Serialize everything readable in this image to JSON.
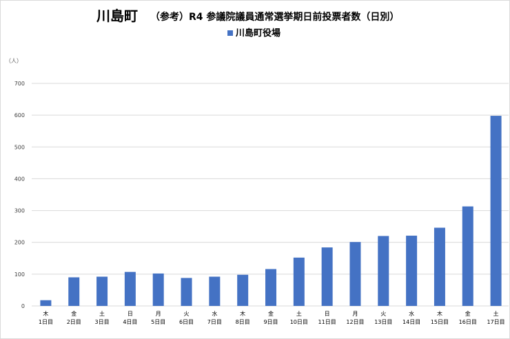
{
  "chart_data": {
    "type": "bar",
    "title_main": "川島町",
    "title_sub": "（参考）R4 参議院議員通常選挙期日前投票者数（日別）",
    "unit_label": "（人）",
    "ylim": [
      0,
      700
    ],
    "yticks": [
      0,
      100,
      200,
      300,
      400,
      500,
      600,
      700
    ],
    "grid": true,
    "legend_position": "top-center",
    "colors": {
      "bar": "#4472c4",
      "grid": "#d9d9d9",
      "text": "#000000"
    },
    "categories": [
      {
        "weekday": "木",
        "day": "1日目"
      },
      {
        "weekday": "金",
        "day": "2日目"
      },
      {
        "weekday": "土",
        "day": "3日目"
      },
      {
        "weekday": "日",
        "day": "4日目"
      },
      {
        "weekday": "月",
        "day": "5日目"
      },
      {
        "weekday": "火",
        "day": "6日目"
      },
      {
        "weekday": "水",
        "day": "7日目"
      },
      {
        "weekday": "木",
        "day": "8日目"
      },
      {
        "weekday": "金",
        "day": "9日目"
      },
      {
        "weekday": "土",
        "day": "10日目"
      },
      {
        "weekday": "日",
        "day": "11日目"
      },
      {
        "weekday": "月",
        "day": "12日目"
      },
      {
        "weekday": "火",
        "day": "13日目"
      },
      {
        "weekday": "水",
        "day": "14日目"
      },
      {
        "weekday": "木",
        "day": "15日目"
      },
      {
        "weekday": "金",
        "day": "16日目"
      },
      {
        "weekday": "土",
        "day": "17日目"
      }
    ],
    "series": [
      {
        "name": "川島町役場",
        "values": [
          18,
          90,
          92,
          107,
          102,
          88,
          92,
          98,
          116,
          152,
          184,
          201,
          220,
          221,
          246,
          313,
          598
        ]
      }
    ]
  }
}
